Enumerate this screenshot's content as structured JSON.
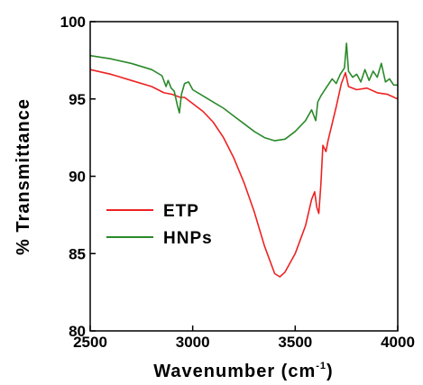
{
  "chart_data": {
    "type": "line",
    "title": "",
    "xlabel": "Wavenumber (cm",
    "xlabel_sup": "-1",
    "xlabel_close": ")",
    "ylabel": "% Transmittance",
    "xlim": [
      2500,
      4000
    ],
    "ylim": [
      80,
      100
    ],
    "x_ticks": [
      "2500",
      "3000",
      "3500",
      "4000"
    ],
    "y_ticks": [
      "80",
      "85",
      "90",
      "95",
      "100"
    ],
    "grid": false,
    "legend_position": "lower-left",
    "series": [
      {
        "name": "ETP",
        "color": "#ee2222",
        "points": [
          [
            2500,
            96.9
          ],
          [
            2600,
            96.6
          ],
          [
            2700,
            96.2
          ],
          [
            2800,
            95.8
          ],
          [
            2860,
            95.4
          ],
          [
            2900,
            95.3
          ],
          [
            2940,
            95.1
          ],
          [
            2960,
            95.1
          ],
          [
            3000,
            94.7
          ],
          [
            3050,
            94.2
          ],
          [
            3100,
            93.5
          ],
          [
            3150,
            92.5
          ],
          [
            3200,
            91.2
          ],
          [
            3250,
            89.6
          ],
          [
            3300,
            87.7
          ],
          [
            3350,
            85.5
          ],
          [
            3400,
            83.7
          ],
          [
            3425,
            83.5
          ],
          [
            3450,
            83.8
          ],
          [
            3500,
            85.0
          ],
          [
            3550,
            86.8
          ],
          [
            3580,
            88.5
          ],
          [
            3595,
            89.0
          ],
          [
            3605,
            88.0
          ],
          [
            3615,
            87.6
          ],
          [
            3625,
            89.5
          ],
          [
            3635,
            92.0
          ],
          [
            3650,
            91.6
          ],
          [
            3660,
            92.3
          ],
          [
            3700,
            94.5
          ],
          [
            3725,
            96.0
          ],
          [
            3745,
            96.7
          ],
          [
            3760,
            95.8
          ],
          [
            3800,
            95.6
          ],
          [
            3850,
            95.7
          ],
          [
            3900,
            95.4
          ],
          [
            3950,
            95.3
          ],
          [
            4000,
            95.0
          ]
        ]
      },
      {
        "name": "HNPs",
        "color": "#2a8a2a",
        "points": [
          [
            2500,
            97.8
          ],
          [
            2600,
            97.6
          ],
          [
            2700,
            97.3
          ],
          [
            2800,
            96.9
          ],
          [
            2850,
            96.5
          ],
          [
            2870,
            95.8
          ],
          [
            2880,
            96.2
          ],
          [
            2895,
            95.7
          ],
          [
            2910,
            95.5
          ],
          [
            2925,
            94.6
          ],
          [
            2935,
            94.1
          ],
          [
            2945,
            95.3
          ],
          [
            2960,
            96.0
          ],
          [
            2980,
            96.1
          ],
          [
            3000,
            95.6
          ],
          [
            3050,
            95.2
          ],
          [
            3100,
            94.8
          ],
          [
            3150,
            94.4
          ],
          [
            3200,
            93.9
          ],
          [
            3250,
            93.4
          ],
          [
            3300,
            92.9
          ],
          [
            3350,
            92.5
          ],
          [
            3400,
            92.3
          ],
          [
            3450,
            92.4
          ],
          [
            3500,
            92.9
          ],
          [
            3550,
            93.6
          ],
          [
            3580,
            94.3
          ],
          [
            3600,
            93.6
          ],
          [
            3610,
            94.8
          ],
          [
            3625,
            95.2
          ],
          [
            3650,
            95.7
          ],
          [
            3680,
            96.3
          ],
          [
            3700,
            96.0
          ],
          [
            3720,
            96.6
          ],
          [
            3740,
            97.0
          ],
          [
            3750,
            98.6
          ],
          [
            3760,
            96.8
          ],
          [
            3780,
            96.4
          ],
          [
            3800,
            96.6
          ],
          [
            3820,
            96.1
          ],
          [
            3840,
            96.9
          ],
          [
            3860,
            96.2
          ],
          [
            3880,
            96.8
          ],
          [
            3900,
            96.4
          ],
          [
            3920,
            97.3
          ],
          [
            3940,
            96.1
          ],
          [
            3960,
            96.3
          ],
          [
            3980,
            95.9
          ],
          [
            4000,
            95.9
          ]
        ]
      }
    ]
  }
}
